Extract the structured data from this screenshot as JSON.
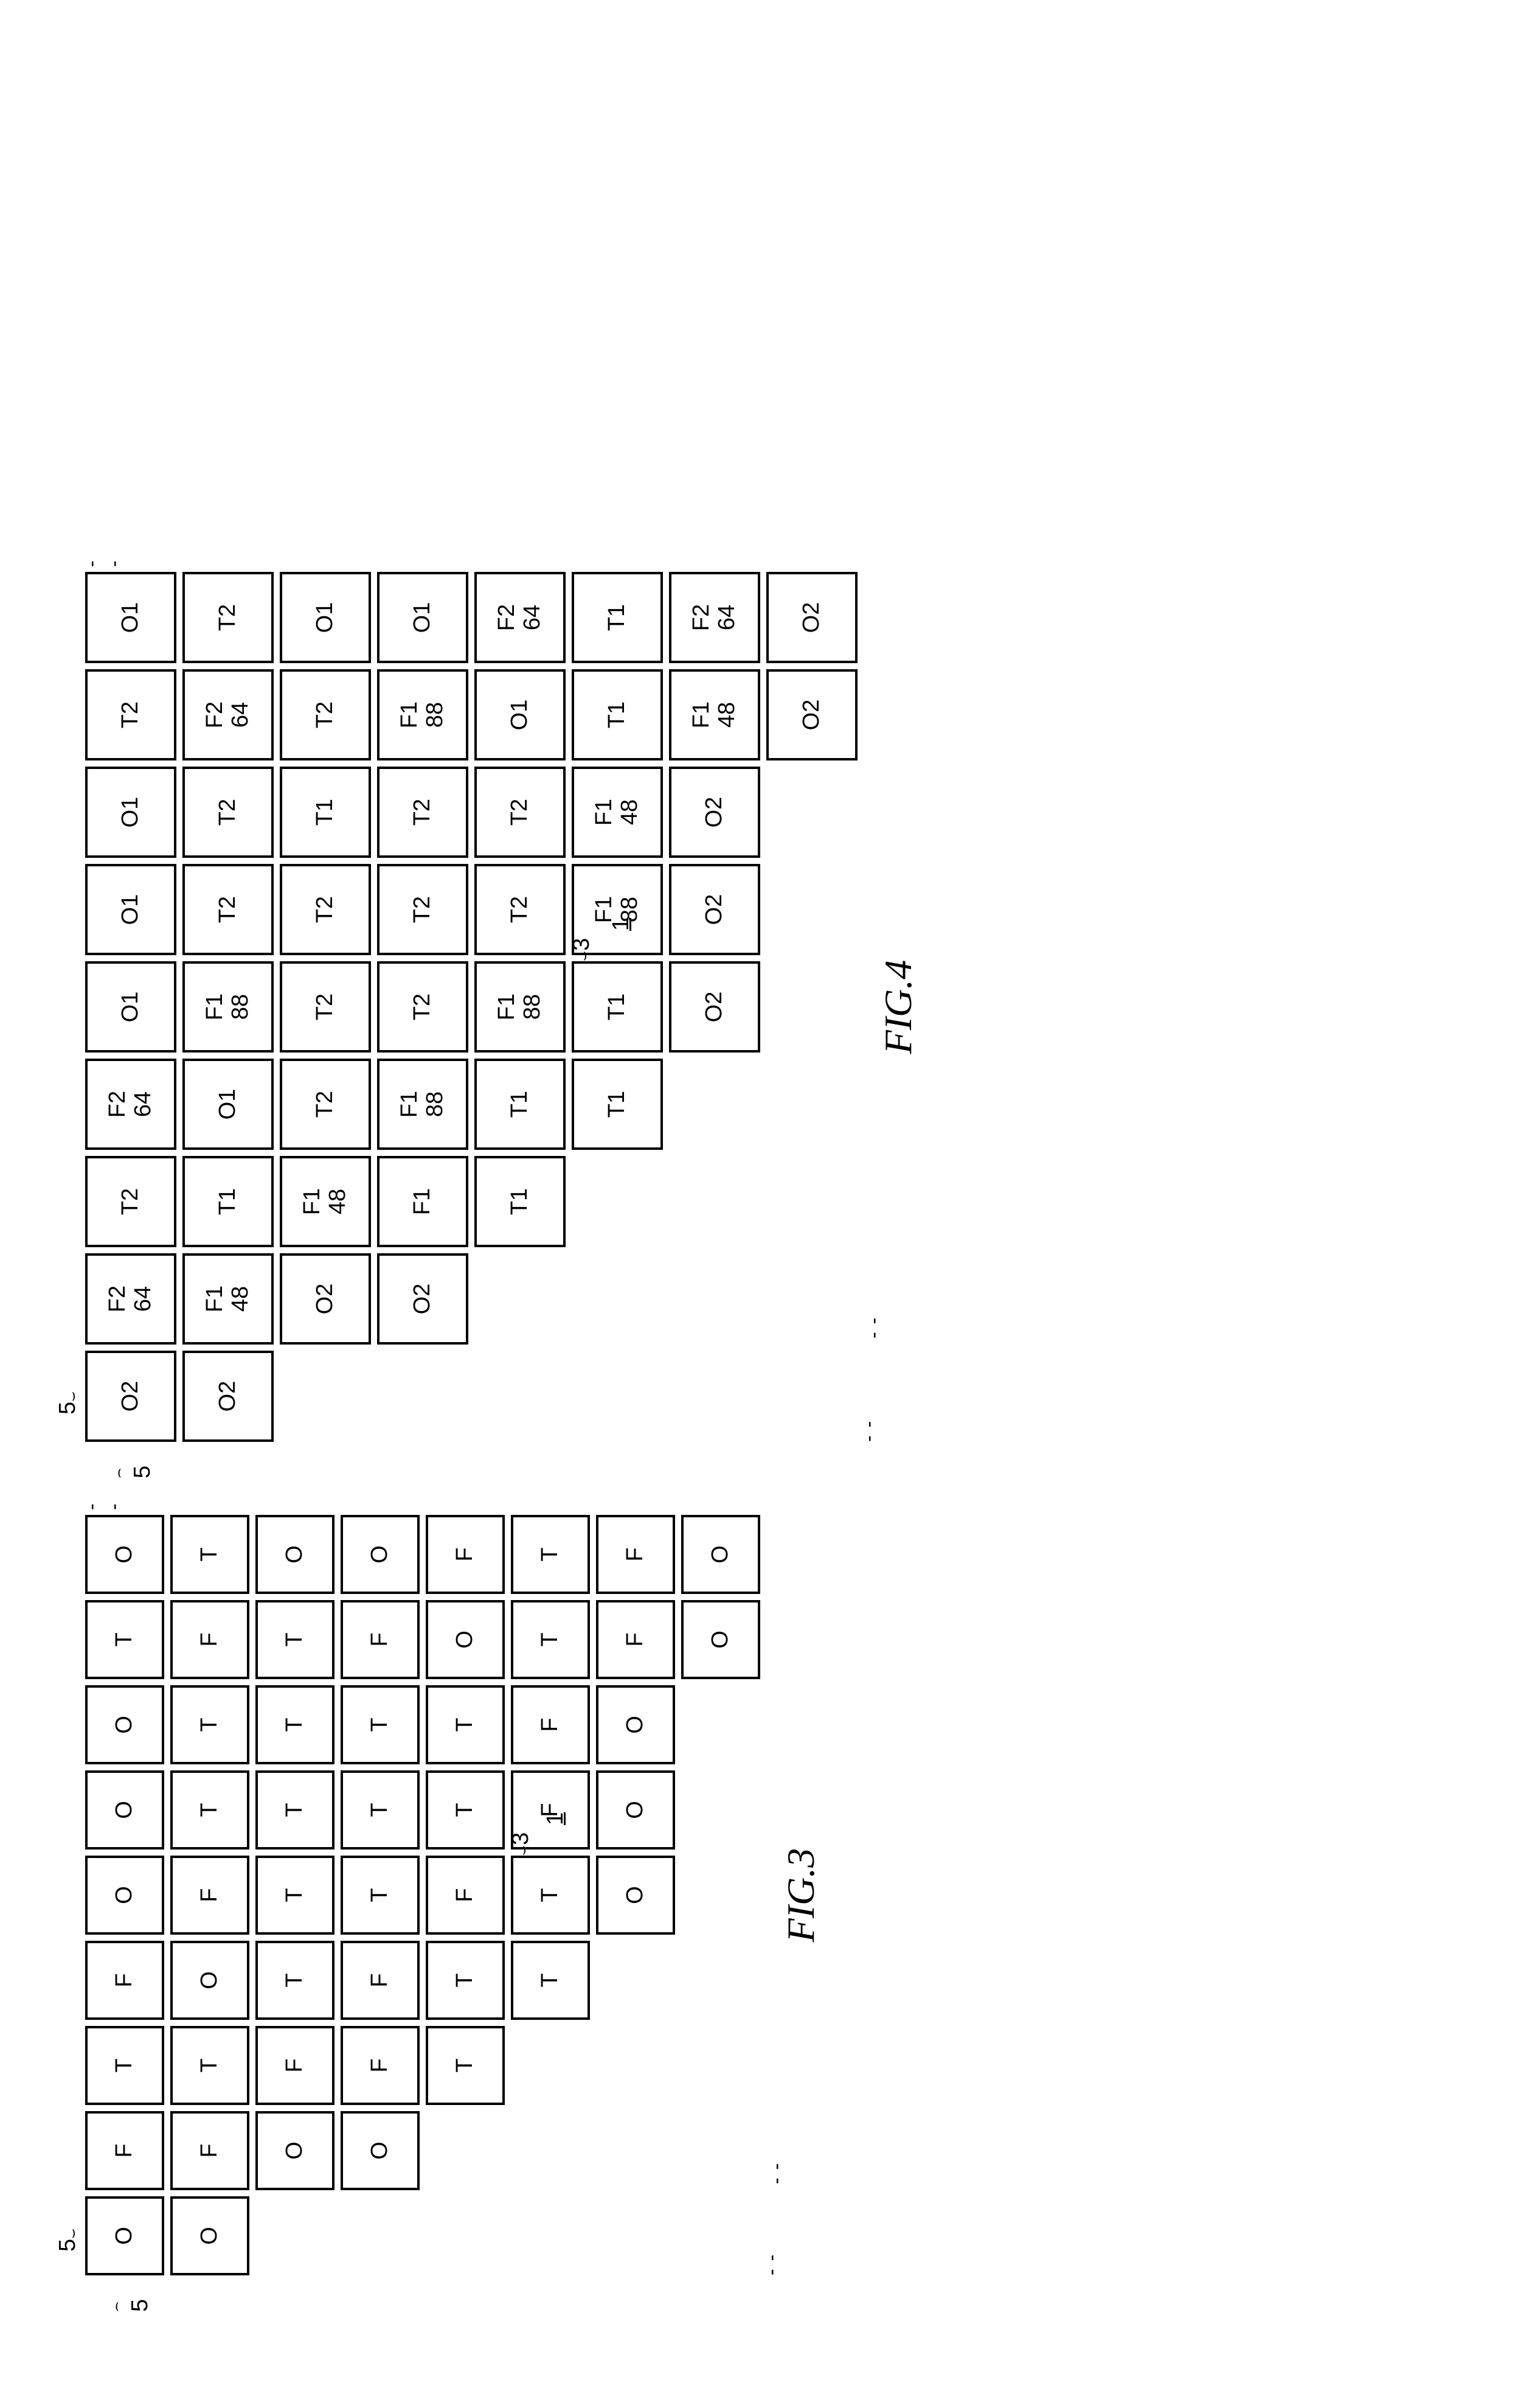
{
  "figures": [
    {
      "id": "fig3",
      "caption": "FIG.3",
      "cell_size": 130,
      "cols": 8,
      "rows": 8,
      "stroke_color": "#000000",
      "stroke_width": 4,
      "gap": 10,
      "font_size": 38,
      "cells": [
        [
          "O",
          "T",
          "O",
          "O",
          "O",
          "F",
          "T",
          "F",
          "O"
        ],
        [
          "T",
          "F",
          "T",
          "T",
          "F",
          "O",
          "T",
          "F",
          "O"
        ],
        [
          "O",
          "T",
          "T",
          "T",
          "T",
          "T",
          "F",
          "O",
          ""
        ],
        [
          "O",
          "F",
          "T",
          "T",
          "T",
          "F",
          "F",
          "O",
          ""
        ],
        [
          "F",
          "O",
          "T",
          "T",
          "F",
          "T",
          "T",
          "",
          ""
        ],
        [
          "T",
          "T",
          "F",
          "F",
          "T",
          "T",
          "",
          "",
          ""
        ],
        [
          "F",
          "F",
          "O",
          "O",
          "O",
          "",
          "",
          "",
          ""
        ],
        [
          "O",
          "O",
          "",
          "",
          "",
          "",
          "",
          "",
          ""
        ]
      ],
      "annotations": [
        {
          "text": "5",
          "pos": "top-left-col"
        },
        {
          "text": "5",
          "pos": "left-top-row"
        },
        {
          "text": "3",
          "pos": "mid-right"
        },
        {
          "text": "1",
          "pos": "below-mid-right",
          "underline": true
        }
      ]
    },
    {
      "id": "fig4",
      "caption": "FIG.4",
      "cell_size": 150,
      "cols": 8,
      "rows": 8,
      "stroke_color": "#000000",
      "stroke_width": 4,
      "gap": 10,
      "font_size": 38,
      "cells": [
        [
          [
            "O1"
          ],
          [
            "T2"
          ],
          [
            "O1"
          ],
          [
            "O1"
          ],
          [
            "O1"
          ],
          [
            "F2",
            "64"
          ],
          [
            "T2"
          ],
          [
            "F2",
            "64"
          ],
          [
            "O2"
          ]
        ],
        [
          [
            "T2"
          ],
          [
            "F2",
            "64"
          ],
          [
            "T2"
          ],
          [
            "T2"
          ],
          [
            "F1",
            "88"
          ],
          [
            "O1"
          ],
          [
            "T1"
          ],
          [
            "F1",
            "48"
          ],
          [
            "O2"
          ]
        ],
        [
          [
            "O1"
          ],
          [
            "T2"
          ],
          [
            "T1"
          ],
          [
            "T2"
          ],
          [
            "T2"
          ],
          [
            "T2"
          ],
          [
            "F1",
            "48"
          ],
          [
            "O2"
          ],
          []
        ],
        [
          [
            "O1"
          ],
          [
            "F1",
            "88"
          ],
          [
            "T2"
          ],
          [
            "T2"
          ],
          [
            "T2"
          ],
          [
            "F1",
            "88"
          ],
          [
            "F1"
          ],
          [
            "O2"
          ],
          []
        ],
        [
          [
            "F2",
            "64"
          ],
          [
            "O1"
          ],
          [
            "T2"
          ],
          [
            "T2"
          ],
          [
            "F1",
            "88"
          ],
          [
            "T1"
          ],
          [
            "T1"
          ],
          [],
          []
        ],
        [
          [
            "T1"
          ],
          [
            "T1"
          ],
          [
            "F1",
            "48"
          ],
          [
            "F1",
            "88"
          ],
          [
            "T1"
          ],
          [
            "T1"
          ],
          [],
          [],
          []
        ],
        [
          [
            "F2",
            "64"
          ],
          [
            "F1",
            "48"
          ],
          [
            "O2"
          ],
          [
            "O2"
          ],
          [
            "O2"
          ],
          [],
          [],
          [],
          []
        ],
        [
          [
            "O2"
          ],
          [
            "O2"
          ],
          [],
          [],
          [],
          [],
          [],
          [],
          []
        ]
      ],
      "annotations": [
        {
          "text": "5",
          "pos": "top-left-col"
        },
        {
          "text": "5",
          "pos": "left-top-row"
        },
        {
          "text": "3",
          "pos": "mid-right"
        },
        {
          "text": "1",
          "pos": "below-mid-right",
          "underline": true
        }
      ]
    }
  ]
}
